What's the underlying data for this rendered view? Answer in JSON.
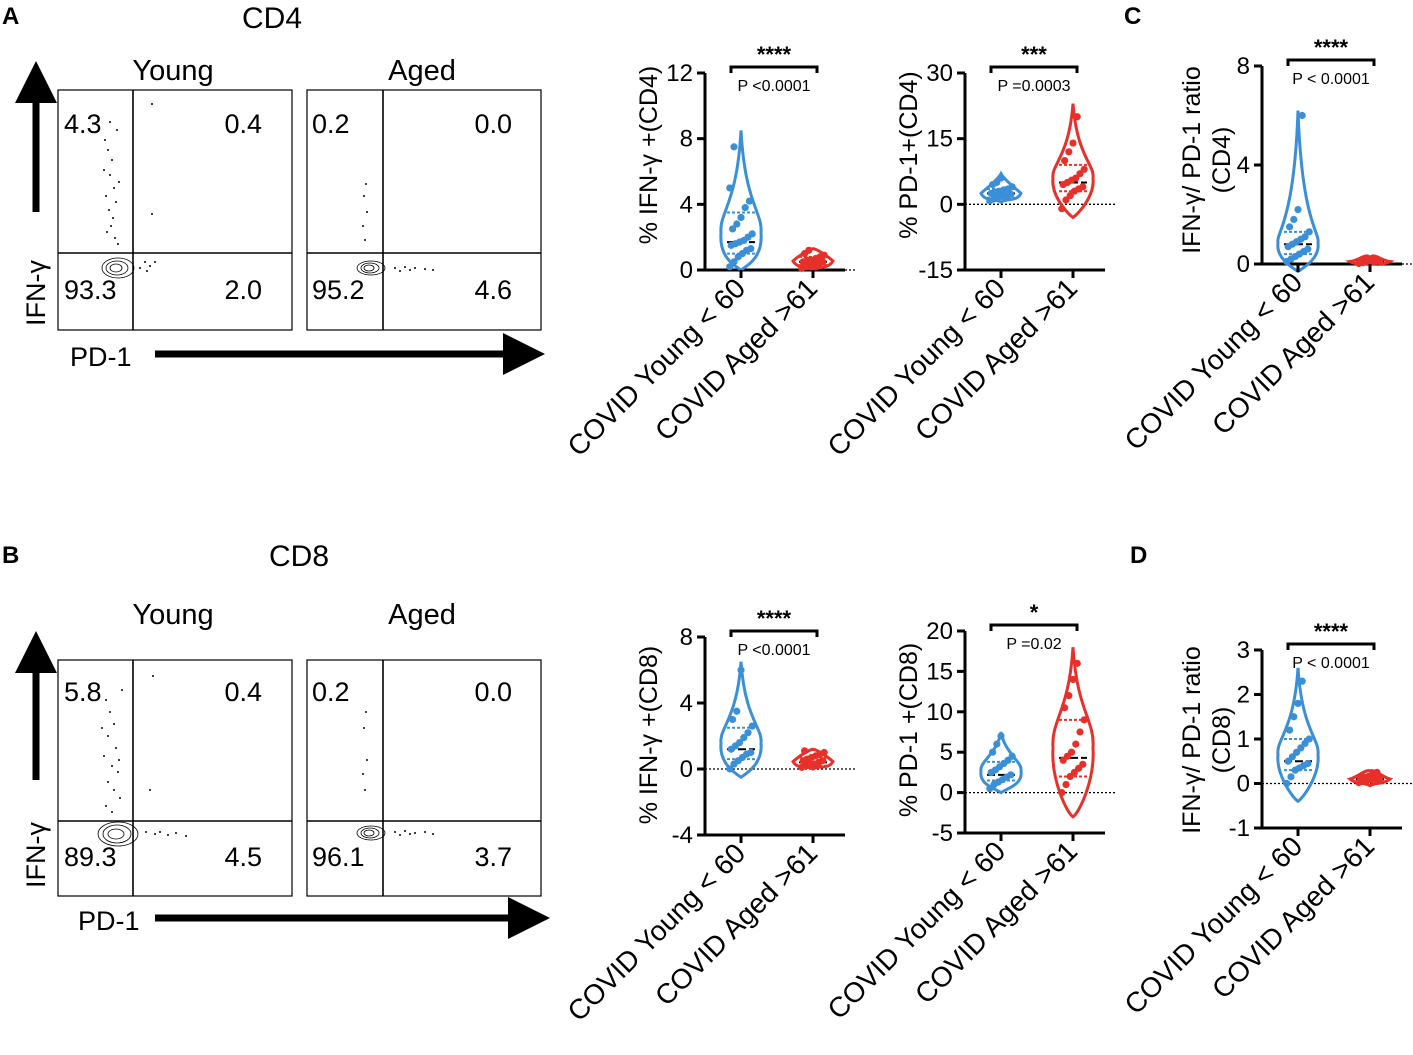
{
  "panel_labels": {
    "A": "A",
    "B": "B",
    "C": "C",
    "D": "D"
  },
  "colors": {
    "young": "#3a8fd6",
    "aged": "#e8302a",
    "axis": "#000000"
  },
  "flow": {
    "cd4": {
      "title": "CD4",
      "y_axis_label": "IFN-γ",
      "x_axis_label": "PD-1",
      "plots": [
        {
          "name": "Young",
          "quadrants": {
            "ul": "4.3",
            "ur": "0.4",
            "ll": "93.3",
            "lr": "2.0"
          }
        },
        {
          "name": "Aged",
          "quadrants": {
            "ul": "0.2",
            "ur": "0.0",
            "ll": "95.2",
            "lr": "4.6"
          }
        }
      ]
    },
    "cd8": {
      "title": "CD8",
      "y_axis_label": "IFN-γ",
      "x_axis_label": "PD-1",
      "plots": [
        {
          "name": "Young",
          "quadrants": {
            "ul": "5.8",
            "ur": "0.4",
            "ll": "89.3",
            "lr": "4.5"
          }
        },
        {
          "name": "Aged",
          "quadrants": {
            "ul": "0.2",
            "ur": "0.0",
            "ll": "96.1",
            "lr": "3.7"
          }
        }
      ]
    }
  },
  "chart_data": [
    {
      "id": "a_ifng_cd4",
      "type": "violin",
      "ylabel": "% IFN-γ +(CD4)",
      "ylim": [
        0,
        12
      ],
      "yticks": [
        0,
        4,
        8,
        12
      ],
      "categories": [
        "COVID Young < 60",
        "COVID Aged >61"
      ],
      "significance": "****",
      "p_value": "P <0.0001",
      "series": [
        {
          "name": "COVID Young < 60",
          "median": 1.7,
          "q1": 1.0,
          "q3": 3.5,
          "min": 0.0,
          "max": 8.5,
          "points": [
            0.2,
            0.5,
            0.8,
            1.0,
            1.2,
            1.3,
            1.5,
            1.6,
            1.7,
            1.8,
            2.0,
            2.2,
            2.5,
            2.8,
            3.2,
            3.8,
            4.2,
            5.0,
            7.5
          ]
        },
        {
          "name": "COVID Aged >61",
          "median": 0.5,
          "q1": 0.3,
          "q3": 0.8,
          "min": 0.0,
          "max": 1.3,
          "points": [
            0.1,
            0.2,
            0.3,
            0.3,
            0.4,
            0.5,
            0.5,
            0.6,
            0.6,
            0.7,
            0.8,
            0.9,
            1.0,
            1.2
          ]
        }
      ]
    },
    {
      "id": "a_pd1_cd4",
      "type": "violin",
      "ylabel": "% PD-1+(CD4)",
      "ylim": [
        -15,
        30
      ],
      "yticks": [
        -15,
        0,
        15,
        30
      ],
      "categories": [
        "COVID Young < 60",
        "COVID Aged >61"
      ],
      "significance": "***",
      "p_value": "P =0.0003",
      "series": [
        {
          "name": "COVID Young < 60",
          "median": 2.5,
          "q1": 1.5,
          "q3": 3.5,
          "min": 0.5,
          "max": 7.0,
          "points": [
            0.8,
            1.2,
            1.5,
            1.8,
            2.0,
            2.3,
            2.5,
            2.8,
            3.0,
            3.3,
            3.5,
            4.0,
            4.5,
            5.0,
            6.0
          ]
        },
        {
          "name": "COVID Aged >61",
          "median": 5.0,
          "q1": 3.0,
          "q3": 9.0,
          "min": -3.0,
          "max": 23.0,
          "points": [
            -1.0,
            1.0,
            2.0,
            3.0,
            3.5,
            4.0,
            4.5,
            5.0,
            5.5,
            6.0,
            7.0,
            8.0,
            10.0,
            12.0,
            14.0,
            20.0
          ]
        }
      ]
    },
    {
      "id": "c_ratio_cd4",
      "type": "violin",
      "ylabel": "IFN-γ/ PD-1 ratio (CD4)",
      "ylim": [
        0,
        8
      ],
      "yticks": [
        0,
        4,
        8
      ],
      "categories": [
        "COVID Young < 60",
        "COVID Aged >61"
      ],
      "significance": "****",
      "p_value": "P < 0.0001",
      "series": [
        {
          "name": "COVID Young < 60",
          "median": 0.8,
          "q1": 0.4,
          "q3": 1.3,
          "min": -0.3,
          "max": 6.2,
          "points": [
            0.1,
            0.2,
            0.3,
            0.4,
            0.5,
            0.6,
            0.7,
            0.8,
            0.9,
            1.0,
            1.1,
            1.3,
            1.5,
            1.8,
            2.2,
            6.0
          ]
        },
        {
          "name": "COVID Aged >61",
          "median": 0.1,
          "q1": 0.05,
          "q3": 0.15,
          "min": 0.0,
          "max": 0.25,
          "points": [
            0.02,
            0.05,
            0.07,
            0.08,
            0.1,
            0.1,
            0.12,
            0.13,
            0.15,
            0.18,
            0.2
          ]
        }
      ]
    },
    {
      "id": "b_ifng_cd8",
      "type": "violin",
      "ylabel": "% IFN-γ +(CD8)",
      "ylim": [
        -4,
        8
      ],
      "yticks": [
        -4,
        0,
        4,
        8
      ],
      "categories": [
        "COVID Young < 60",
        "COVID Aged >61"
      ],
      "significance": "****",
      "p_value": "P <0.0001",
      "series": [
        {
          "name": "COVID Young < 60",
          "median": 1.2,
          "q1": 0.6,
          "q3": 2.5,
          "min": -0.5,
          "max": 6.5,
          "points": [
            0.0,
            0.3,
            0.5,
            0.7,
            0.9,
            1.0,
            1.2,
            1.4,
            1.6,
            1.9,
            2.2,
            2.6,
            3.0,
            3.5,
            6.0
          ]
        },
        {
          "name": "COVID Aged >61",
          "median": 0.4,
          "q1": 0.2,
          "q3": 0.7,
          "min": 0.0,
          "max": 1.2,
          "points": [
            0.1,
            0.2,
            0.3,
            0.3,
            0.4,
            0.5,
            0.5,
            0.6,
            0.7,
            0.8,
            0.9,
            1.0,
            1.1
          ]
        }
      ]
    },
    {
      "id": "b_pd1_cd8",
      "type": "violin",
      "ylabel": "% PD-1 +(CD8)",
      "ylim": [
        -5,
        20
      ],
      "yticks": [
        -5,
        0,
        5,
        10,
        15,
        20
      ],
      "categories": [
        "COVID Young < 60",
        "COVID Aged >61"
      ],
      "significance": "*",
      "p_value": "P =0.02",
      "series": [
        {
          "name": "COVID Young < 60",
          "median": 2.2,
          "q1": 1.5,
          "q3": 3.8,
          "min": 0.0,
          "max": 7.5,
          "points": [
            0.5,
            1.0,
            1.3,
            1.6,
            1.9,
            2.2,
            2.5,
            2.8,
            3.2,
            3.6,
            4.0,
            4.5,
            5.0,
            6.0,
            7.0
          ]
        },
        {
          "name": "COVID Aged >61",
          "median": 4.3,
          "q1": 2.0,
          "q3": 9.0,
          "min": -3.0,
          "max": 18.0,
          "points": [
            0.0,
            1.0,
            2.0,
            2.5,
            3.0,
            3.5,
            4.0,
            4.5,
            5.0,
            6.0,
            7.5,
            9.0,
            10.5,
            12.0,
            14.0,
            16.0
          ]
        }
      ]
    },
    {
      "id": "d_ratio_cd8",
      "type": "violin",
      "ylabel": "IFN-γ/ PD-1 ratio (CD8)",
      "ylim": [
        -1,
        3
      ],
      "yticks": [
        -1,
        0,
        1,
        2,
        3
      ],
      "categories": [
        "COVID Young < 60",
        "COVID Aged >61"
      ],
      "significance": "****",
      "p_value": "P < 0.0001",
      "series": [
        {
          "name": "COVID Young < 60",
          "median": 0.5,
          "q1": 0.3,
          "q3": 1.0,
          "min": -0.4,
          "max": 2.6,
          "points": [
            0.0,
            0.15,
            0.3,
            0.35,
            0.4,
            0.45,
            0.5,
            0.6,
            0.7,
            0.8,
            0.9,
            1.0,
            1.2,
            1.5,
            1.8,
            2.3
          ]
        },
        {
          "name": "COVID Aged >61",
          "median": 0.1,
          "q1": 0.05,
          "q3": 0.15,
          "min": -0.05,
          "max": 0.28,
          "points": [
            0.02,
            0.05,
            0.07,
            0.08,
            0.1,
            0.11,
            0.12,
            0.14,
            0.16,
            0.2,
            0.25
          ]
        }
      ]
    }
  ]
}
